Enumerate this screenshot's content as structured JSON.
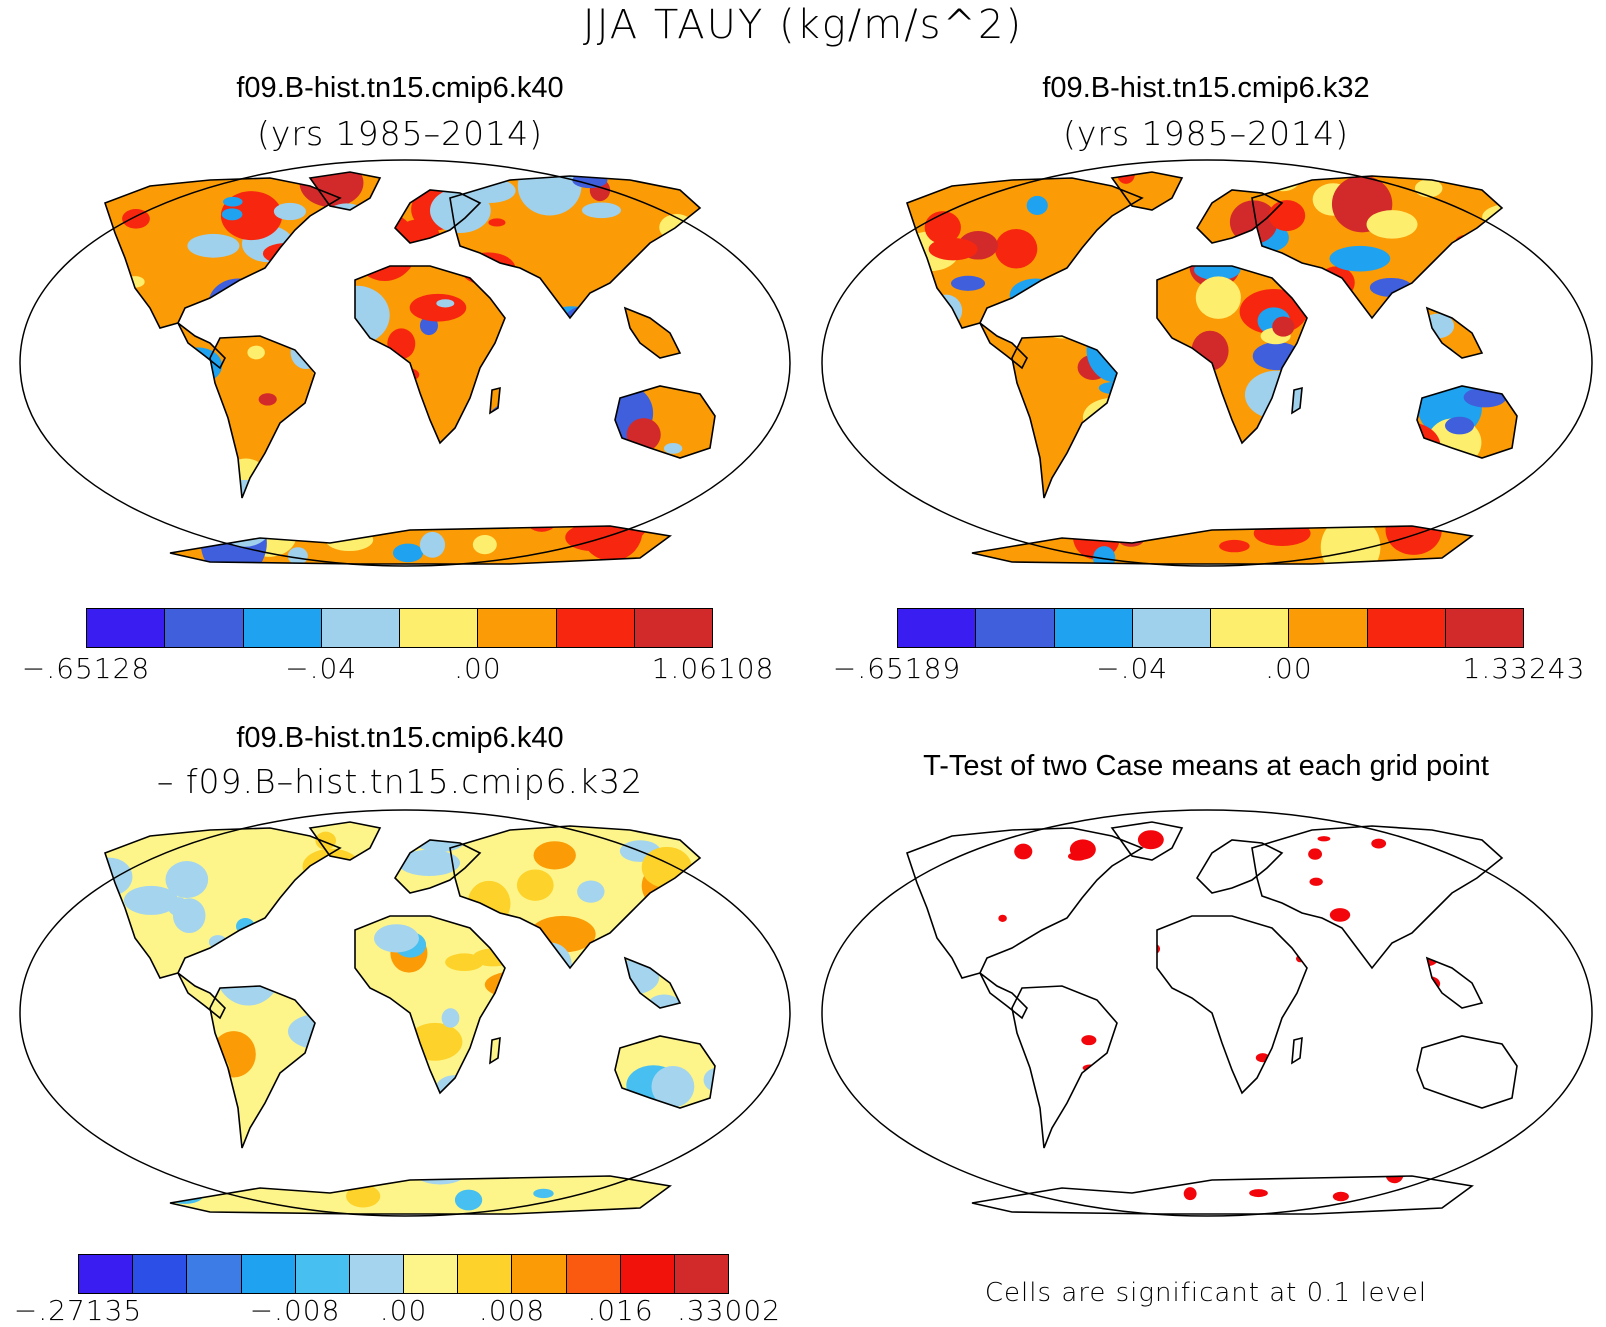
{
  "figure": {
    "title": "JJA TAUY (kg/m/s^2)"
  },
  "panels": [
    {
      "id": "k40",
      "title": "f09.B-hist.tn15.cmip6.k40",
      "subtitle": "(yrs 1985–2014)",
      "colorbar": {
        "colors": [
          "#3a1df0",
          "#3f5fdc",
          "#1fa2ef",
          "#9fd0ec",
          "#fdee6e",
          "#fb9b06",
          "#f7260f",
          "#d22a2a"
        ],
        "labels": [
          {
            "text": "-.65128",
            "boundary": 0
          },
          {
            "text": "-.04",
            "boundary": 3
          },
          {
            "text": ".00",
            "boundary": 5
          },
          {
            "text": "1.06108",
            "boundary": 8
          }
        ]
      }
    },
    {
      "id": "k32",
      "title": "f09.B-hist.tn15.cmip6.k32",
      "subtitle": "(yrs 1985–2014)",
      "colorbar": {
        "colors": [
          "#3a1df0",
          "#3f5fdc",
          "#1fa2ef",
          "#9fd0ec",
          "#fdee6e",
          "#fb9b06",
          "#f7260f",
          "#d22a2a"
        ],
        "labels": [
          {
            "text": "-.65189",
            "boundary": 0
          },
          {
            "text": "-.04",
            "boundary": 3
          },
          {
            "text": ".00",
            "boundary": 5
          },
          {
            "text": "1.33243",
            "boundary": 8
          }
        ]
      }
    },
    {
      "id": "diff",
      "title": "f09.B-hist.tn15.cmip6.k40",
      "subtitle": "– f09.B–hist.tn15.cmip6.k32",
      "colorbar": {
        "colors": [
          "#3a1df0",
          "#2c4fe8",
          "#3d7be6",
          "#1fa2ef",
          "#47bff0",
          "#a4d4ee",
          "#fdf58a",
          "#fdd22a",
          "#fb9b06",
          "#f95a10",
          "#f2120c",
          "#d22a2a"
        ],
        "labels": [
          {
            "text": "-.27135",
            "boundary": 0
          },
          {
            "text": "-.008",
            "boundary": 4
          },
          {
            "text": ".00",
            "boundary": 6
          },
          {
            "text": ".008",
            "boundary": 8
          },
          {
            "text": ".016",
            "boundary": 10
          },
          {
            "text": ".33002",
            "boundary": 12
          }
        ]
      }
    },
    {
      "id": "ttest",
      "title": "T-Test of two Case means at each grid point",
      "note": "Cells are significant at 0.1 level",
      "significance_color": "#f2060b"
    }
  ]
}
